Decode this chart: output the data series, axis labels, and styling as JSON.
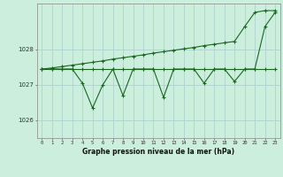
{
  "title": "Graphe pression niveau de la mer (hPa)",
  "bg_color": "#cceedd",
  "grid_color": "#aacccc",
  "line_color": "#1a6620",
  "x_labels": [
    "0",
    "1",
    "2",
    "3",
    "4",
    "5",
    "6",
    "7",
    "8",
    "9",
    "10",
    "11",
    "12",
    "13",
    "14",
    "15",
    "16",
    "17",
    "18",
    "19",
    "20",
    "21",
    "22",
    "23"
  ],
  "ylim": [
    1025.5,
    1029.3
  ],
  "yticks": [
    1026,
    1027,
    1028
  ],
  "x_hours": [
    0,
    1,
    2,
    3,
    4,
    5,
    6,
    7,
    8,
    9,
    10,
    11,
    12,
    13,
    14,
    15,
    16,
    17,
    18,
    19,
    20,
    21,
    22,
    23
  ],
  "line_flat": [
    1027.45,
    1027.45,
    1027.45,
    1027.45,
    1027.45,
    1027.45,
    1027.45,
    1027.45,
    1027.45,
    1027.45,
    1027.45,
    1027.45,
    1027.45,
    1027.45,
    1027.45,
    1027.45,
    1027.45,
    1027.45,
    1027.45,
    1027.45,
    1027.45,
    1027.45,
    1027.45,
    1027.45
  ],
  "line_rising": [
    1027.45,
    1027.48,
    1027.52,
    1027.56,
    1027.6,
    1027.64,
    1027.68,
    1027.73,
    1027.77,
    1027.81,
    1027.85,
    1027.9,
    1027.94,
    1027.98,
    1028.02,
    1028.06,
    1028.11,
    1028.15,
    1028.19,
    1028.23,
    1028.65,
    1029.05,
    1029.1,
    1029.1
  ],
  "line_jagged": [
    1027.45,
    1027.45,
    1027.45,
    1027.45,
    1027.05,
    1026.35,
    1027.0,
    1027.45,
    1026.7,
    1027.45,
    1027.45,
    1027.45,
    1026.65,
    1027.45,
    1027.45,
    1027.45,
    1027.05,
    1027.45,
    1027.45,
    1027.1,
    1027.45,
    1027.45,
    1028.65,
    1029.05
  ]
}
